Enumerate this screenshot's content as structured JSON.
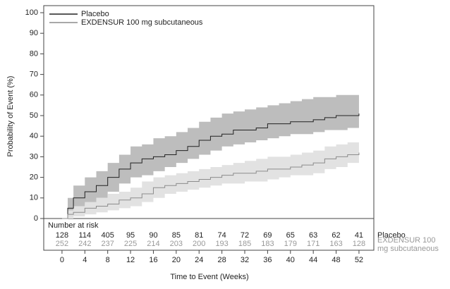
{
  "chart_data": {
    "type": "line",
    "step": true,
    "y_label": "Probability of Event (%)",
    "x_label": "Time to Event (Weeks)",
    "x": [
      0,
      1,
      2,
      4,
      6,
      8,
      10,
      12,
      14,
      16,
      18,
      20,
      22,
      24,
      26,
      28,
      30,
      32,
      34,
      36,
      38,
      40,
      42,
      44,
      46,
      48,
      50,
      52
    ],
    "xlim": [
      -3.2,
      54.6
    ],
    "xticks": [
      0,
      4,
      8,
      12,
      16,
      20,
      24,
      28,
      32,
      36,
      40,
      44,
      48,
      52
    ],
    "ylim": [
      0,
      100
    ],
    "yticks": [
      0,
      10,
      20,
      30,
      40,
      50,
      60,
      70,
      80,
      90,
      100
    ],
    "legend": "top-left",
    "series": [
      {
        "name": "Placebo",
        "color": "#222222",
        "band_color": "#bdbdbd",
        "values": [
          0,
          5,
          10,
          13,
          16,
          20,
          24,
          27,
          29,
          30,
          31,
          33,
          35,
          38,
          40,
          41,
          43,
          43,
          44,
          46,
          46,
          47,
          47,
          48,
          49,
          50,
          50,
          51
        ],
        "lower": [
          0,
          1,
          4,
          7,
          10,
          13,
          17,
          20,
          21,
          23,
          25,
          27,
          29,
          31,
          33,
          35,
          36,
          37,
          38,
          39,
          40,
          41,
          41,
          42,
          43,
          43,
          44,
          44
        ],
        "upper": [
          0,
          10,
          16,
          20,
          23,
          27,
          31,
          35,
          36,
          39,
          40,
          42,
          44,
          47,
          49,
          51,
          52,
          53,
          54,
          55,
          56,
          57,
          58,
          59,
          59,
          60,
          60,
          60
        ]
      },
      {
        "name": "EXDENSUR 100 mg subcutaneous",
        "color": "#8c8c8c",
        "band_color": "#e2e2e2",
        "values": [
          0,
          2,
          3,
          5,
          6,
          7,
          9,
          10,
          12,
          15,
          16,
          17,
          18,
          19,
          20,
          21,
          22,
          22,
          23,
          24,
          24,
          25,
          26,
          27,
          29,
          30,
          31,
          32
        ],
        "lower": [
          0,
          0,
          1,
          2,
          3,
          4,
          5,
          6,
          8,
          10,
          12,
          13,
          14,
          15,
          16,
          17,
          17,
          18,
          18,
          19,
          20,
          21,
          21,
          22,
          24,
          25,
          27,
          28
        ],
        "upper": [
          0,
          4,
          6,
          8,
          10,
          12,
          13,
          15,
          18,
          20,
          21,
          22,
          23,
          24,
          25,
          26,
          27,
          28,
          29,
          30,
          30,
          31,
          32,
          33,
          35,
          36,
          37,
          38
        ]
      }
    ],
    "risk_table": {
      "title": "Number at risk",
      "rows": [
        {
          "name": "Placebo",
          "color": "#222222",
          "values": [
            128,
            114,
            405,
            95,
            90,
            85,
            81,
            74,
            72,
            69,
            65,
            63,
            62,
            41
          ]
        },
        {
          "name": "EXDENSUR 100 mg subcutaneous",
          "color": "#999999",
          "values": [
            252,
            242,
            237,
            225,
            214,
            203,
            200,
            193,
            185,
            183,
            179,
            171,
            163,
            128
          ]
        }
      ]
    }
  }
}
